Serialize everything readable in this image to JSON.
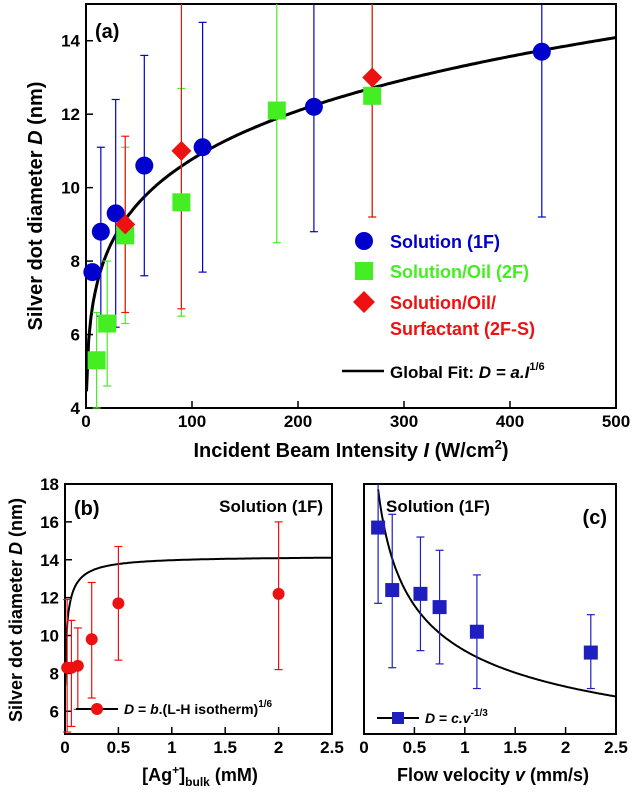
{
  "chart_data": [
    {
      "panel": "(a)",
      "type": "scatter",
      "xlabel": "Incident Beam Intensity I (W/cm²)",
      "xlabel_parts": {
        "pre": "Incident Beam Intensity ",
        "italic": "I",
        "post": " (W/cm",
        "sup": "2",
        "end": ")"
      },
      "ylabel": "Silver dot diameter D (nm)",
      "ylabel_parts": {
        "pre": "Silver dot diameter ",
        "italic": "D",
        "post": " (nm)"
      },
      "xlim": [
        0,
        500
      ],
      "ylim": [
        4,
        15
      ],
      "xticks": [
        0,
        100,
        200,
        300,
        400,
        500
      ],
      "yticks": [
        4,
        6,
        8,
        10,
        12,
        14
      ],
      "grid": false,
      "legend_placement": "right",
      "series": [
        {
          "name": "Solution (1F)",
          "color": "#0000cc",
          "marker": "circle",
          "points": [
            {
              "x": 6,
              "y": 7.7,
              "yerr_low": 7.7,
              "yerr_high": 7.7
            },
            {
              "x": 14,
              "y": 8.8,
              "yerr_low": 6.5,
              "yerr_high": 11.1
            },
            {
              "x": 28,
              "y": 9.3,
              "yerr_low": 6.2,
              "yerr_high": 12.4
            },
            {
              "x": 55,
              "y": 10.6,
              "yerr_low": 7.6,
              "yerr_high": 13.6
            },
            {
              "x": 110,
              "y": 11.1,
              "yerr_low": 7.7,
              "yerr_high": 14.5
            },
            {
              "x": 215,
              "y": 12.2,
              "yerr_low": 8.8,
              "yerr_high": 15.6
            },
            {
              "x": 430,
              "y": 13.7,
              "yerr_low": 9.2,
              "yerr_high": 18.2
            }
          ]
        },
        {
          "name": "Solution/Oil (2F)",
          "color": "#44ee22",
          "marker": "square",
          "points": [
            {
              "x": 10,
              "y": 5.3,
              "yerr_low": 4.0,
              "yerr_high": 6.6
            },
            {
              "x": 20,
              "y": 6.3,
              "yerr_low": 4.6,
              "yerr_high": 8.0
            },
            {
              "x": 37,
              "y": 8.7,
              "yerr_low": 6.3,
              "yerr_high": 11.1
            },
            {
              "x": 90,
              "y": 9.6,
              "yerr_low": 6.5,
              "yerr_high": 12.7
            },
            {
              "x": 180,
              "y": 12.1,
              "yerr_low": 8.5,
              "yerr_high": 15.7
            },
            {
              "x": 270,
              "y": 12.5,
              "yerr_low": 9.2,
              "yerr_high": 15.8
            }
          ]
        },
        {
          "name": "Solution/Oil/ Surfactant (2F-S)",
          "name_lines": [
            "Solution/Oil/",
            "Surfactant (2F-S)"
          ],
          "color": "#ee1111",
          "marker": "diamond",
          "points": [
            {
              "x": 37,
              "y": 9.0,
              "yerr_low": 6.6,
              "yerr_high": 11.4
            },
            {
              "x": 90,
              "y": 11.0,
              "yerr_low": 6.7,
              "yerr_high": 15.3
            },
            {
              "x": 270,
              "y": 13.0,
              "yerr_low": 9.2,
              "yerr_high": 16.8
            }
          ]
        }
      ],
      "fit": {
        "name": "Global Fit: D = a.I^1/6",
        "legend_parts": {
          "pre": "Global Fit: ",
          "italic": "D = a.I",
          "sup": "1/6"
        },
        "color": "#000000",
        "model": "power",
        "coef": 5.0,
        "exponent": 0.16667,
        "x_range": [
          0.5,
          500
        ]
      }
    },
    {
      "panel": "(b)",
      "type": "scatter",
      "annotation": "Solution (1F)",
      "xlabel": "[Ag+]bulk (mM)",
      "xlabel_parts": {
        "pre": "[Ag",
        "sup": "+",
        "mid": "]",
        "sub": "bulk",
        "post": " (mM)"
      },
      "ylabel": "Silver dot diameter D (nm)",
      "ylabel_parts": {
        "pre": "Silver dot diameter ",
        "italic": "D",
        "post": " (nm)"
      },
      "xlim": [
        0,
        2.5
      ],
      "ylim": [
        4.8,
        18
      ],
      "xticks": [
        0,
        0.5,
        1,
        1.5,
        2,
        2.5
      ],
      "xticklabels": [
        "0",
        "0.5",
        "1",
        "1.5",
        "2",
        "2.5"
      ],
      "yticks": [
        6,
        8,
        10,
        12,
        14,
        16,
        18
      ],
      "grid": false,
      "legend_placement": "bottom-left",
      "series": [
        {
          "name": "D = b.(L-H isotherm)^1/6",
          "legend_parts": {
            "italic": "D",
            "pre": " = ",
            "italic2": "b",
            "post": ".(L-H isotherm)",
            "sup": "1/6"
          },
          "color": "#ee1111",
          "marker": "circle",
          "points": [
            {
              "x": 0.02,
              "y": 8.3,
              "yerr_low": 4.9,
              "yerr_high": 11.9
            },
            {
              "x": 0.06,
              "y": 8.3,
              "yerr_low": 5.2,
              "yerr_high": 10.8
            },
            {
              "x": 0.12,
              "y": 8.4,
              "yerr_low": 6.1,
              "yerr_high": 10.4
            },
            {
              "x": 0.25,
              "y": 9.8,
              "yerr_low": 6.7,
              "yerr_high": 12.8
            },
            {
              "x": 0.5,
              "y": 11.7,
              "yerr_low": 8.7,
              "yerr_high": 14.7
            },
            {
              "x": 2.0,
              "y": 12.2,
              "yerr_low": 8.2,
              "yerr_high": 16.0
            }
          ]
        }
      ],
      "fit": {
        "color": "#000000",
        "model": "langmuir",
        "a": 14.2,
        "K": 10.0,
        "exponent": 0.16667,
        "x_range": [
          0.002,
          2.5
        ]
      }
    },
    {
      "panel": "(c)",
      "type": "scatter",
      "annotation": "Solution (1F)",
      "xlabel": "Flow velocity v (mm/s)",
      "xlabel_parts": {
        "pre": "Flow velocity ",
        "italic": "v",
        "post": " (mm/s)"
      },
      "xlim": [
        0,
        2.5
      ],
      "ylim": [
        4.8,
        18
      ],
      "xticks": [
        0,
        0.5,
        1,
        1.5,
        2,
        2.5
      ],
      "xticklabels": [
        "0",
        "0.5",
        "1",
        "1.5",
        "2",
        "2.5"
      ],
      "grid": false,
      "legend_placement": "bottom-left",
      "series": [
        {
          "name": "D = c.v^-1/3",
          "legend_parts": {
            "italic": "D",
            "pre": " = ",
            "italic2": "c.v",
            "sup": "-1/3"
          },
          "color": "#1f1fbf",
          "marker": "square",
          "points": [
            {
              "x": 0.14,
              "y": 15.7,
              "yerr_low": 11.7,
              "yerr_high": 19.7
            },
            {
              "x": 0.28,
              "y": 12.4,
              "yerr_low": 8.3,
              "yerr_high": 16.4
            },
            {
              "x": 0.56,
              "y": 12.2,
              "yerr_low": 9.2,
              "yerr_high": 15.2
            },
            {
              "x": 0.75,
              "y": 11.5,
              "yerr_low": 8.5,
              "yerr_high": 14.5
            },
            {
              "x": 1.12,
              "y": 10.2,
              "yerr_low": 7.2,
              "yerr_high": 13.2
            },
            {
              "x": 2.25,
              "y": 9.1,
              "yerr_low": 7.2,
              "yerr_high": 11.1
            }
          ]
        }
      ],
      "fit": {
        "color": "#000000",
        "model": "power",
        "coef": 9.2,
        "exponent": -0.3333,
        "x_range": [
          0.1,
          2.5
        ]
      }
    }
  ]
}
